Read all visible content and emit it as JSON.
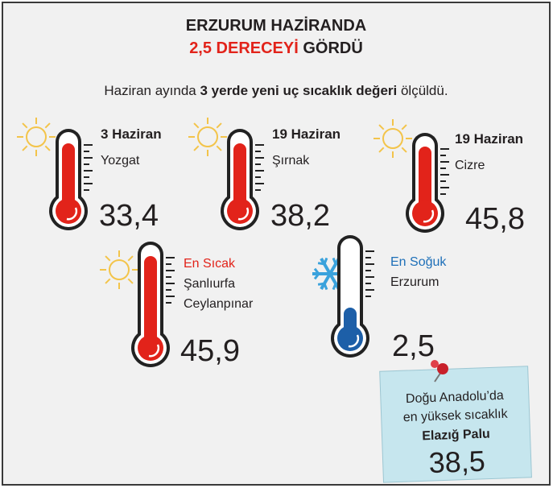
{
  "title": {
    "line1": "ERZURUM HAZİRANDA",
    "line2_red": "2,5 DERECEYİ",
    "line2_black": "GÖRDÜ"
  },
  "subtitle": {
    "before": "Haziran ayında",
    "bold": "3 yerde yeni uç sıcaklık değeri",
    "after": "ölçüldü."
  },
  "records": [
    {
      "date": "3 Haziran",
      "place": "Yozgat",
      "value": "33,4"
    },
    {
      "date": "19 Haziran",
      "place": "Şırnak",
      "value": "38,2"
    },
    {
      "date": "19 Haziran",
      "place": "Cizre",
      "value": "45,8"
    }
  ],
  "hottest": {
    "label": "En Sıcak",
    "place1": "Şanlıurfa",
    "place2": "Ceylanpınar",
    "value": "45,9"
  },
  "coldest": {
    "label": "En Soğuk",
    "place": "Erzurum",
    "value": "2,5"
  },
  "note": {
    "line1": "Doğu Anadolu’da",
    "line2": "en yüksek sıcaklık",
    "place": "Elazığ Palu",
    "value": "38,5"
  }
}
